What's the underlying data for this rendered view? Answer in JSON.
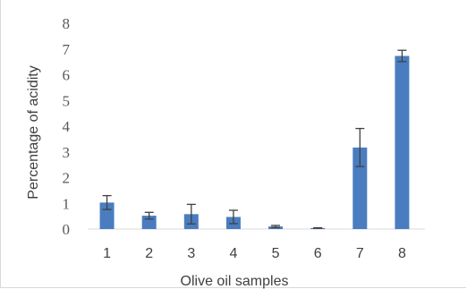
{
  "chart_data": {
    "type": "bar",
    "title": "",
    "xlabel": "Olive oil samples",
    "ylabel": "Percentage of acidity",
    "categories": [
      "1",
      "2",
      "3",
      "4",
      "5",
      "6",
      "7",
      "8"
    ],
    "series": [
      {
        "values": [
          1.03,
          0.52,
          0.58,
          0.47,
          0.1,
          0.04,
          3.17,
          6.73
        ],
        "error": [
          0.27,
          0.13,
          0.38,
          0.26,
          0.04,
          0.01,
          0.74,
          0.22
        ]
      }
    ],
    "ylim": [
      0,
      8
    ],
    "yticks": [
      "0",
      "1",
      "2",
      "3",
      "4",
      "5",
      "6",
      "7",
      "8"
    ],
    "grid": false,
    "legend": "none",
    "bar_color": "#4a7dbf",
    "error_color": "#404040"
  }
}
